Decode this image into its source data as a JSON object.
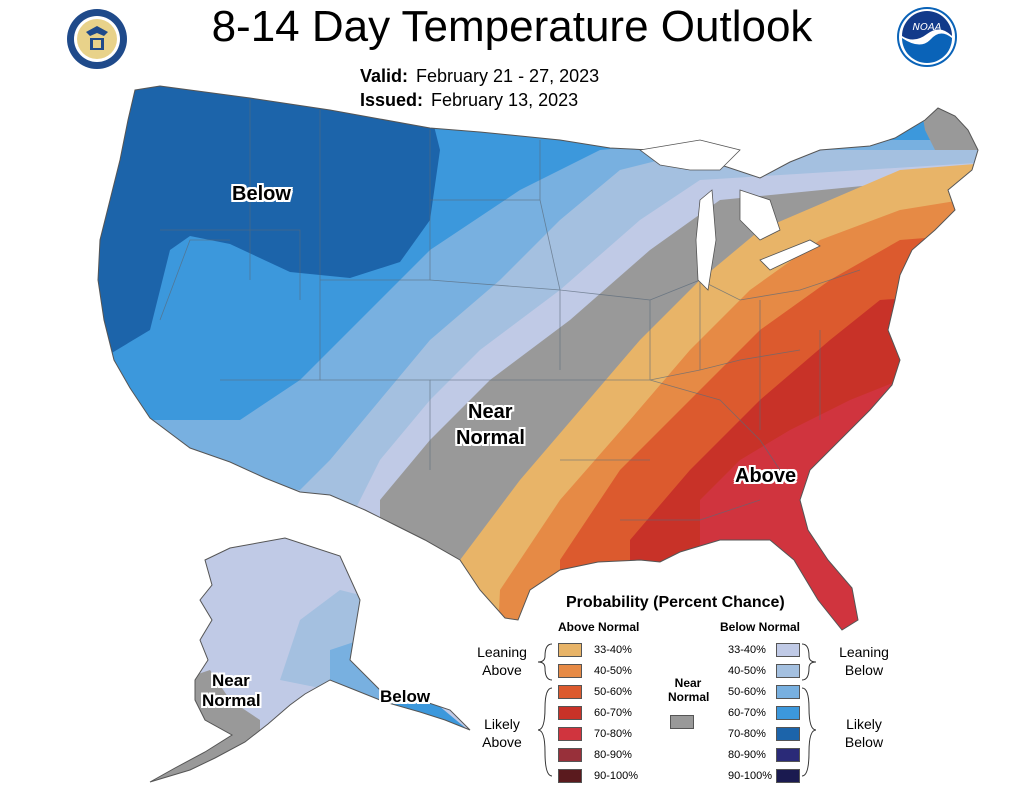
{
  "header": {
    "title": "8-14 Day Temperature Outlook",
    "valid_label": "Valid:",
    "valid_value": "February 21 - 27, 2023",
    "issued_label": "Issued:",
    "issued_value": "February 13, 2023"
  },
  "logos": {
    "left": "department-of-commerce-seal",
    "right": "noaa-logo"
  },
  "map": {
    "labels": {
      "west_below": "Below",
      "central_near_normal_1": "Near",
      "central_near_normal_2": "Normal",
      "southeast_above": "Above",
      "alaska_near_1": "Near",
      "alaska_near_2": "Normal",
      "alaska_below": "Below"
    }
  },
  "legend": {
    "title": "Probability (Percent Chance)",
    "above_header": "Above Normal",
    "below_header": "Below Normal",
    "near_header_1": "Near",
    "near_header_2": "Normal",
    "leaning_above_1": "Leaning",
    "leaning_above_2": "Above",
    "likely_above_1": "Likely",
    "likely_above_2": "Above",
    "leaning_below_1": "Leaning",
    "leaning_below_2": "Below",
    "likely_below_1": "Likely",
    "likely_below_2": "Below",
    "above": [
      {
        "range": "33-40%",
        "color": "#e8b468"
      },
      {
        "range": "40-50%",
        "color": "#e68a45"
      },
      {
        "range": "50-60%",
        "color": "#dc5a2e"
      },
      {
        "range": "60-70%",
        "color": "#c83228"
      },
      {
        "range": "70-80%",
        "color": "#d0343e"
      },
      {
        "range": "80-90%",
        "color": "#98303a"
      },
      {
        "range": "90-100%",
        "color": "#5a1a1e"
      }
    ],
    "below": [
      {
        "range": "33-40%",
        "color": "#c0cae6"
      },
      {
        "range": "40-50%",
        "color": "#a4c0e0"
      },
      {
        "range": "50-60%",
        "color": "#78b0e0"
      },
      {
        "range": "60-70%",
        "color": "#3c98dc"
      },
      {
        "range": "70-80%",
        "color": "#1c64aa"
      },
      {
        "range": "80-90%",
        "color": "#2a2a78"
      },
      {
        "range": "90-100%",
        "color": "#1a1a50"
      }
    ],
    "near_color": "#999999"
  }
}
